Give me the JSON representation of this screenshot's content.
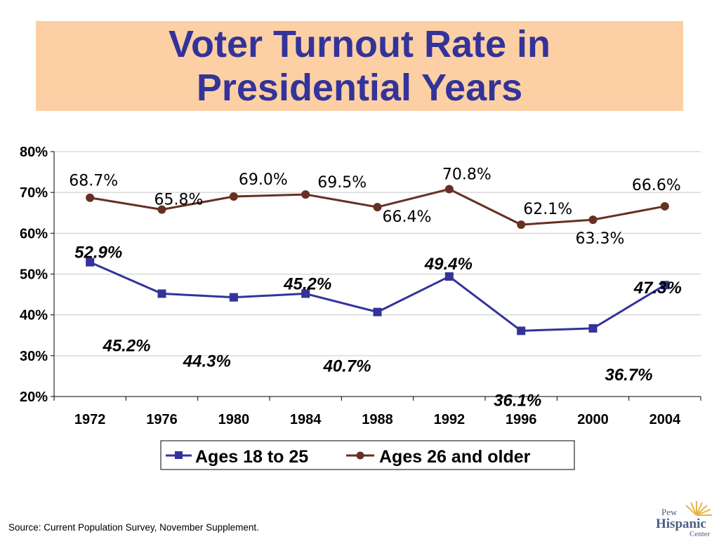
{
  "title": {
    "line1": "Voter Turnout Rate in",
    "line2": "Presidential Years"
  },
  "chart_data": {
    "type": "line",
    "categories": [
      "1972",
      "1976",
      "1980",
      "1984",
      "1988",
      "1992",
      "1996",
      "2000",
      "2004"
    ],
    "series": [
      {
        "name": "Ages 18 to 25",
        "values": [
          52.9,
          45.2,
          44.3,
          45.2,
          40.7,
          49.4,
          36.1,
          36.7,
          47.3
        ],
        "labels": [
          "52.9%",
          "45.2%",
          "44.3%",
          "45.2%",
          "40.7%",
          "49.4%",
          "36.1%",
          "36.7%",
          "47.3%"
        ],
        "color": "#333399",
        "marker": "square",
        "label_style": "bold-italic"
      },
      {
        "name": "Ages 26 and older",
        "values": [
          68.7,
          65.8,
          69.0,
          69.5,
          66.4,
          70.8,
          62.1,
          63.3,
          66.6
        ],
        "labels": [
          "68.7%",
          "65.8%",
          "69.0%",
          "69.5%",
          "66.4%",
          "70.8%",
          "62.1%",
          "63.3%",
          "66.6%"
        ],
        "color": "#663022",
        "marker": "circle",
        "label_style": "normal"
      }
    ],
    "y_ticks": [
      "20%",
      "30%",
      "40%",
      "50%",
      "60%",
      "70%",
      "80%"
    ],
    "ylim": [
      20,
      80
    ],
    "grid": true,
    "legend_position": "bottom"
  },
  "source": "Source:  Current Population Survey, November Supplement.",
  "logo": {
    "line1": "Pew",
    "line2": "Hispanic",
    "line3": "Center"
  }
}
